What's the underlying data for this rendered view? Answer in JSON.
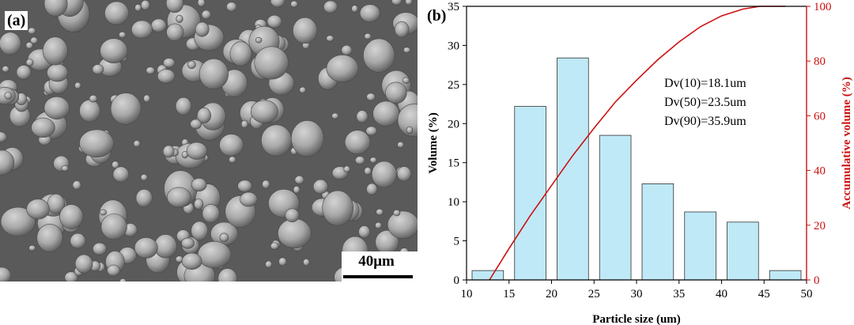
{
  "panel_a": {
    "label": "(a)",
    "scale_bar_label": "40μm"
  },
  "panel_b": {
    "label": "(b)"
  },
  "chart_data": {
    "type": "bar",
    "xlabel": "Particle size (um)",
    "ylabel": "Volume (%)",
    "y2label": "Accumulative volume (%)",
    "xlim": [
      10,
      50
    ],
    "ylim": [
      0,
      35
    ],
    "y2lim": [
      0,
      100
    ],
    "xticks": [
      10,
      15,
      20,
      25,
      30,
      35,
      40,
      45,
      50
    ],
    "yticks": [
      0,
      5,
      10,
      15,
      20,
      25,
      30,
      35
    ],
    "y2ticks": [
      0,
      20,
      40,
      60,
      80,
      100
    ],
    "bars": [
      {
        "center": 12.5,
        "value": 1.2
      },
      {
        "center": 17.5,
        "value": 22.2
      },
      {
        "center": 22.5,
        "value": 28.4
      },
      {
        "center": 27.5,
        "value": 18.5
      },
      {
        "center": 32.5,
        "value": 12.3
      },
      {
        "center": 37.5,
        "value": 8.7
      },
      {
        "center": 42.5,
        "value": 7.4
      },
      {
        "center": 47.5,
        "value": 1.2
      }
    ],
    "bar_width": 3.7,
    "bar_color": "#bfe9f7",
    "cumulative_curve": {
      "color": "#cc1111",
      "x": [
        12.7,
        15,
        17.5,
        20,
        22.5,
        25,
        27.5,
        30,
        32.5,
        35,
        37.5,
        40,
        42.5,
        44.5,
        47.5
      ],
      "y": [
        0,
        11.5,
        23.5,
        34.5,
        45.5,
        55.5,
        65,
        73,
        80.5,
        87,
        92.5,
        96.5,
        99,
        100,
        100
      ]
    },
    "annotations": [
      "Dv(10)=18.1um",
      "Dv(50)=23.5um",
      "Dv(90)=35.9um"
    ]
  }
}
